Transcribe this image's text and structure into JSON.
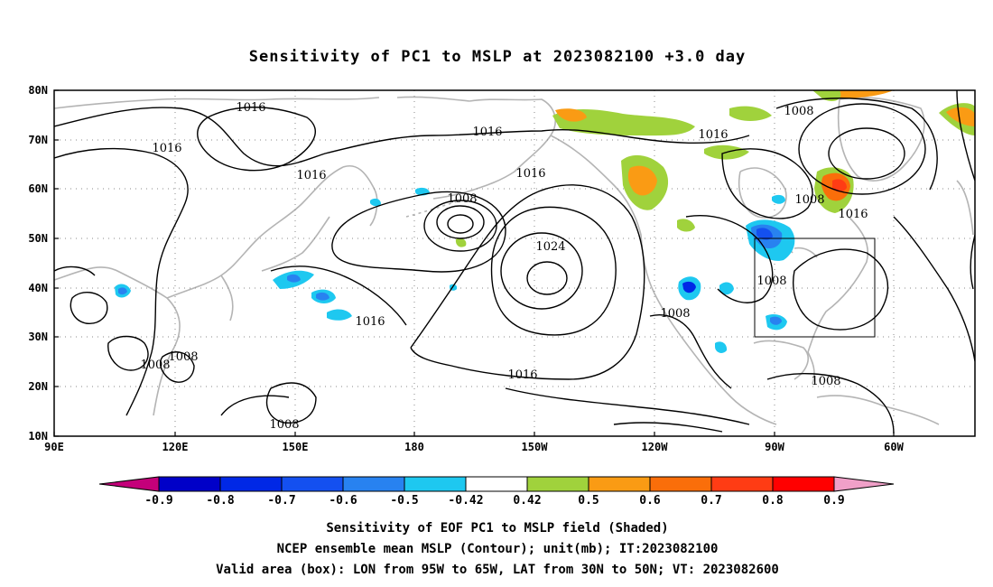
{
  "title": "Sensitivity of PC1 to MSLP at 2023082100 +3.0 day",
  "lat_ticks": [
    "80N",
    "70N",
    "60N",
    "50N",
    "40N",
    "30N",
    "20N",
    "10N"
  ],
  "lon_ticks": [
    "90E",
    "120E",
    "150E",
    "180",
    "150W",
    "120W",
    "90W",
    "60W"
  ],
  "contour_labels": [
    "1016",
    "1016",
    "1016",
    "1016",
    "1016",
    "1016",
    "1008",
    "1024",
    "1008",
    "1008",
    "1016",
    "1016",
    "1008",
    "1008",
    "1008",
    "1008",
    "1016",
    "1008",
    "1008"
  ],
  "colorbar": {
    "tick_labels": [
      "-0.9",
      "-0.8",
      "-0.7",
      "-0.6",
      "-0.5",
      "-0.42",
      "0.42",
      "0.5",
      "0.6",
      "0.7",
      "0.8",
      "0.9"
    ],
    "colors": [
      "#c4007a",
      "#0000c8",
      "#0028e6",
      "#1450f0",
      "#2882f0",
      "#1ec8f0",
      "#ffffff",
      "#a0d23c",
      "#fa9b14",
      "#fa6e0a",
      "#ff3c14",
      "#ff0000",
      "#f0a0c8"
    ]
  },
  "captions": {
    "line1": "Sensitivity of EOF PC1 to MSLP field (Shaded)",
    "line2": "NCEP ensemble mean MSLP (Contour); unit(mb); IT:2023082100",
    "line3": "Valid area (box): LON from 95W to 65W, LAT from 30N to 50N; VT: 2023082600"
  },
  "map": {
    "lon_range": [
      "90E",
      "40W"
    ],
    "lat_range": [
      "10N",
      "80N"
    ],
    "valid_box": {
      "lon": [
        "95W",
        "65W"
      ],
      "lat": [
        "30N",
        "50N"
      ]
    },
    "grid": "dotted every 30 degrees longitude, 10 degrees latitude"
  }
}
